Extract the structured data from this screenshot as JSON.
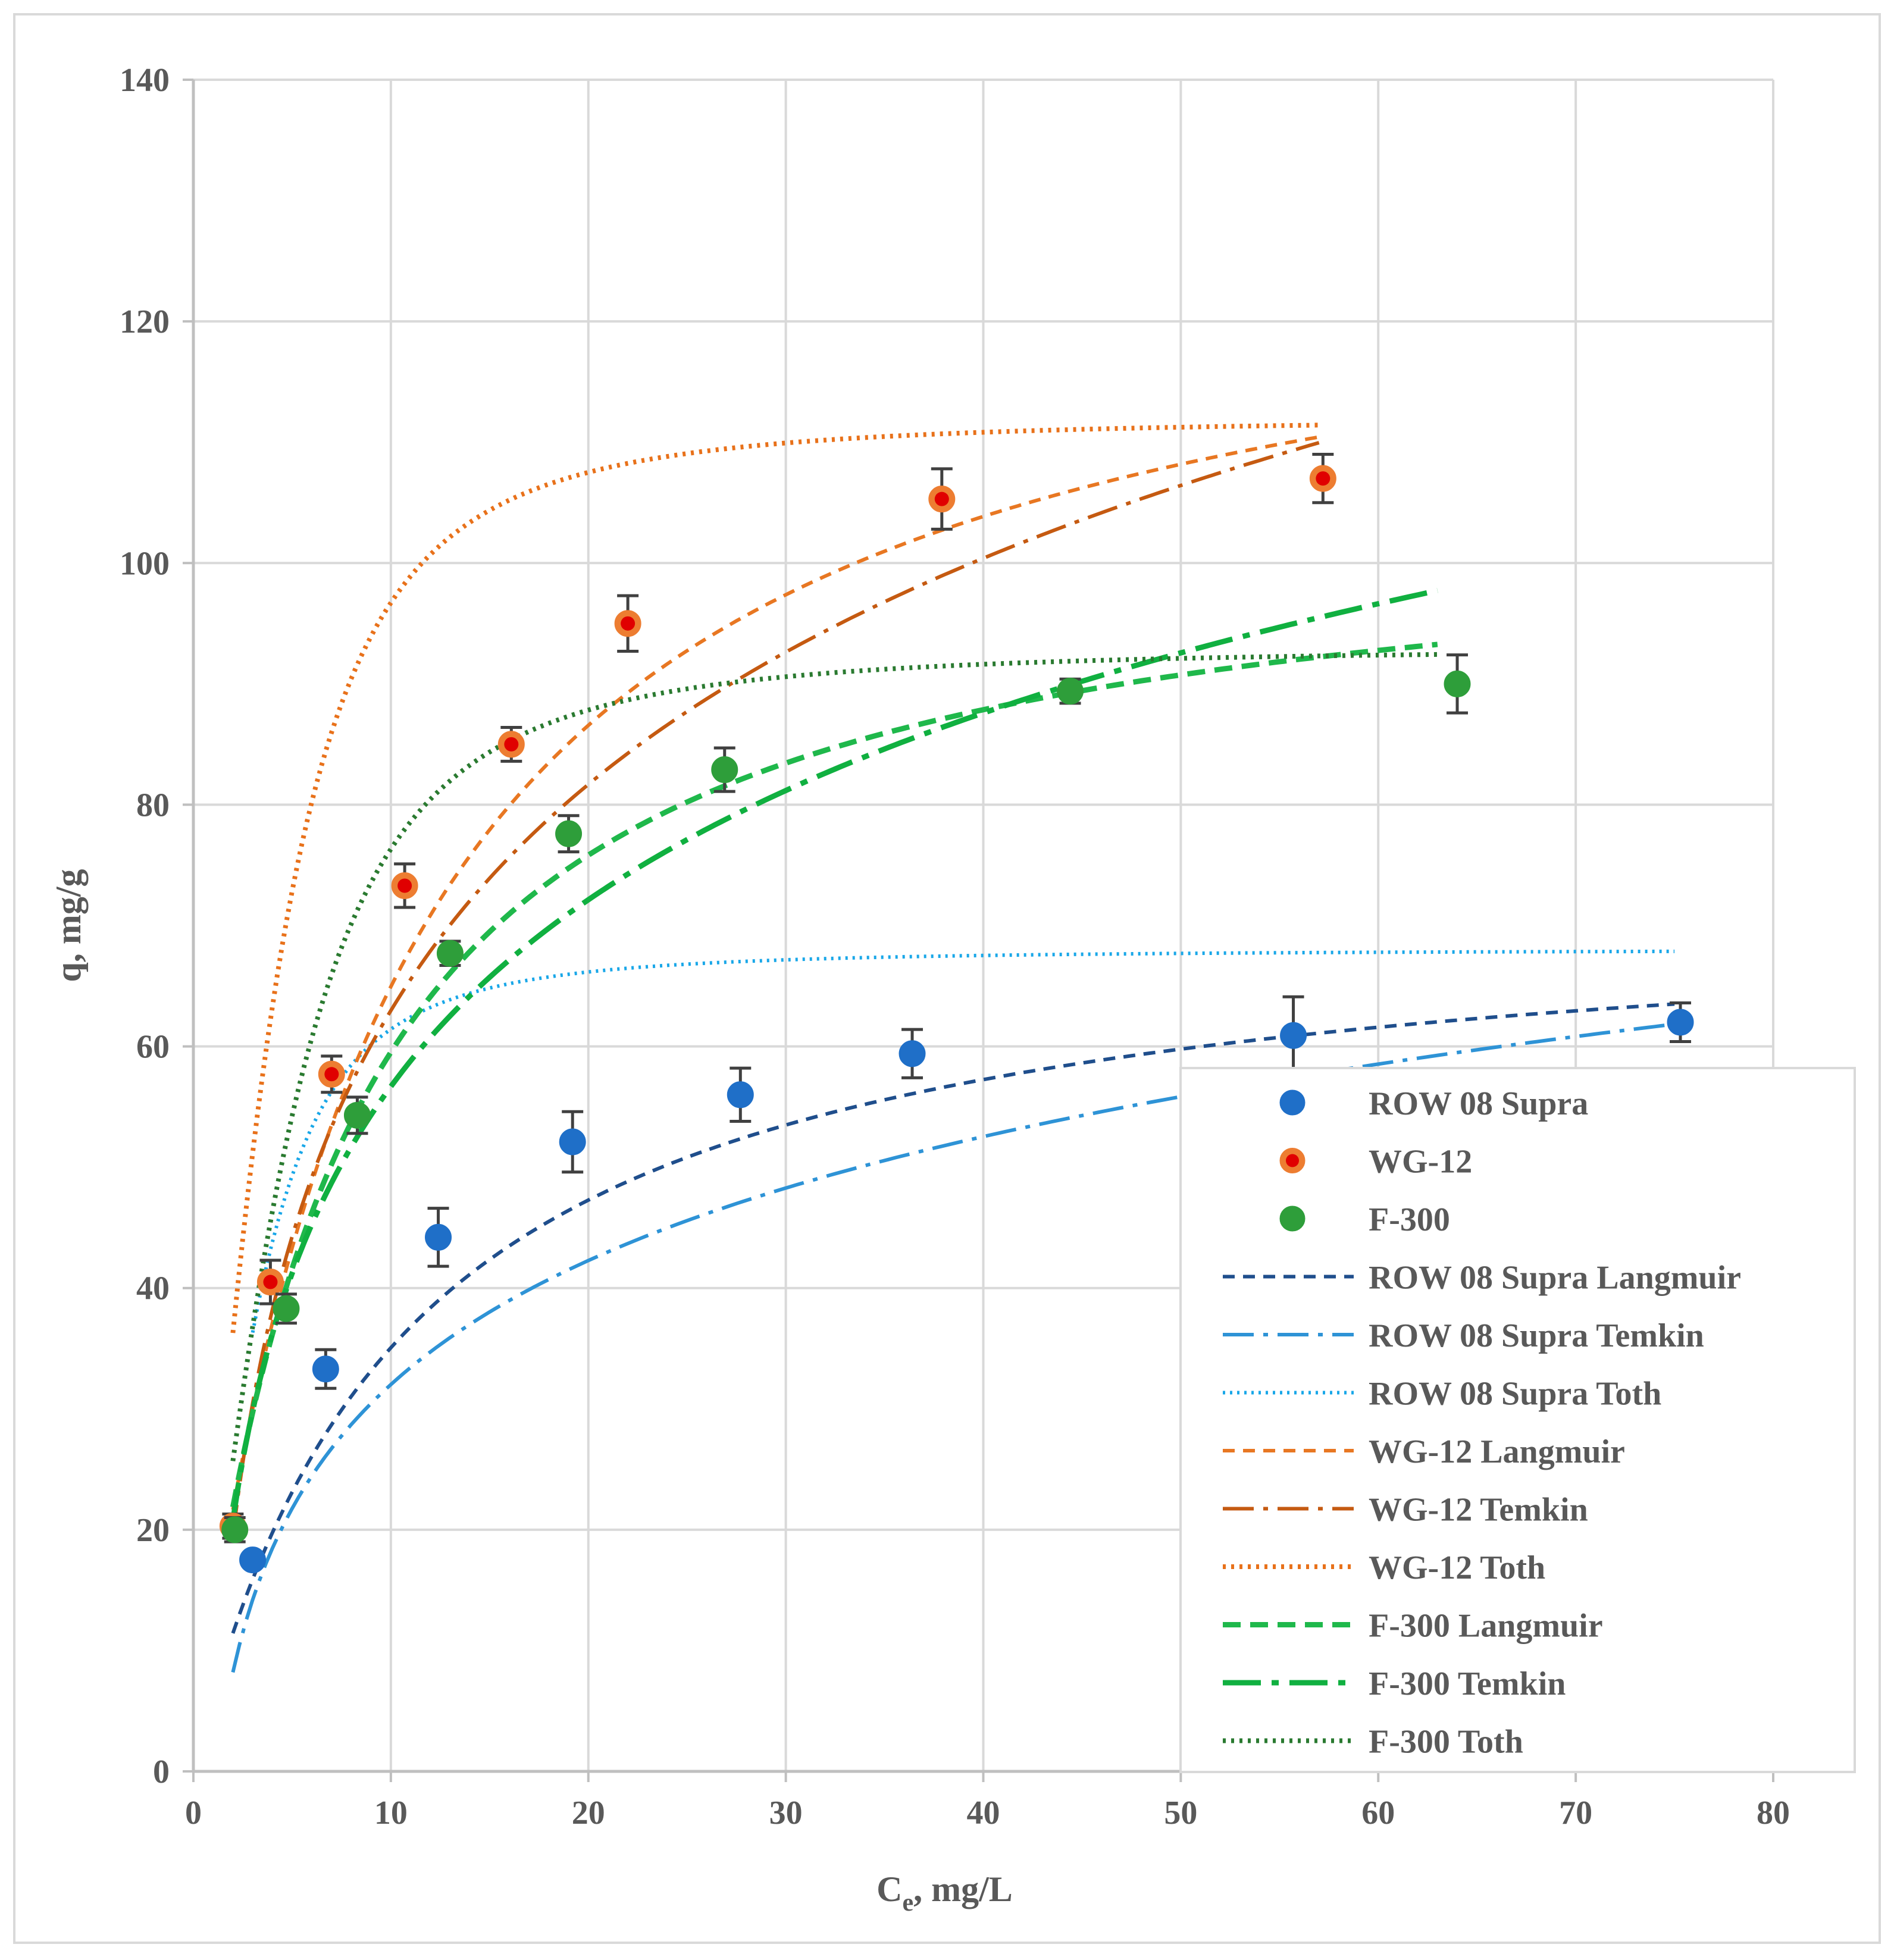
{
  "chart_data": {
    "type": "scatter",
    "title": "",
    "xlabel": {
      "main": "C",
      "sub": "e",
      "rest": ", mg/L"
    },
    "ylabel": "q, mg/g",
    "xlim": [
      0,
      80
    ],
    "ylim": [
      0,
      140
    ],
    "x_ticks": [
      0,
      10,
      20,
      30,
      40,
      50,
      60,
      70,
      80
    ],
    "y_ticks": [
      0,
      20,
      40,
      60,
      80,
      100,
      120,
      140
    ],
    "x_tick_labels": [
      "0",
      "10",
      "20",
      "30",
      "40",
      "50",
      "60",
      "70",
      "80"
    ],
    "y_tick_labels": [
      "0",
      "20",
      "40",
      "60",
      "80",
      "100",
      "120",
      "140"
    ],
    "grid": true,
    "legend_position": "bottom-right",
    "points": [
      {
        "name": "ROW 08 Supra",
        "color": "#1f6fc8",
        "edge": "#1f6fc8",
        "center": null,
        "x": [
          3.0,
          6.7,
          12.4,
          19.2,
          27.7,
          36.4,
          55.7,
          75.3
        ],
        "y": [
          17.5,
          33.3,
          44.2,
          52.1,
          56.0,
          59.4,
          60.9,
          62.0
        ],
        "err": [
          0.0,
          1.6,
          2.4,
          2.5,
          2.2,
          2.0,
          3.2,
          1.6
        ]
      },
      {
        "name": "WG-12",
        "color": "#ed7d31",
        "edge": "#ed7d31",
        "center": "#e00000",
        "x": [
          2.0,
          3.9,
          7.0,
          10.7,
          16.1,
          22.0,
          37.9,
          57.2
        ],
        "y": [
          20.3,
          40.5,
          57.7,
          73.3,
          85.0,
          95.0,
          105.3,
          107.0
        ],
        "err": [
          1.0,
          1.8,
          1.5,
          1.8,
          1.4,
          2.3,
          2.5,
          2.0
        ]
      },
      {
        "name": "F-300",
        "color": "#2e9e3a",
        "edge": "#2e9e3a",
        "center": null,
        "x": [
          2.1,
          4.7,
          8.3,
          13.0,
          19.0,
          26.9,
          44.4,
          64.0
        ],
        "y": [
          20.0,
          38.3,
          54.3,
          67.7,
          77.6,
          82.9,
          89.4,
          90.0
        ],
        "err": [
          1.0,
          1.2,
          1.5,
          1.0,
          1.5,
          1.8,
          1.0,
          2.4
        ]
      }
    ],
    "fits": [
      {
        "name": "ROW 08 Supra Langmuir",
        "color": "#1f4e8c",
        "dash": "20 14",
        "width": 6,
        "model": "langmuir",
        "params": {
          "qmax": 72.56,
          "K": 0.0935
        },
        "x_range": [
          2.0,
          75.0
        ]
      },
      {
        "name": "ROW 08 Supra Temkin",
        "color": "#2e93d6",
        "dash": "52 16 8 16",
        "width": 6,
        "model": "temkin",
        "params": {
          "B": 14.8,
          "A": 0.87
        },
        "x_range": [
          2.0,
          75.0
        ]
      },
      {
        "name": "ROW 08 Supra Toth",
        "color": "#19a7e8",
        "dash": "4 8",
        "width": 6,
        "model": "toth",
        "params": {
          "qmax": 68.0,
          "b": 4.75,
          "t": 2.0
        },
        "x_range": [
          3.0,
          75.0
        ]
      },
      {
        "name": "WG-12 Langmuir",
        "color": "#e87722",
        "dash": "20 14",
        "width": 6,
        "model": "langmuir",
        "params": {
          "qmax": 129.77,
          "K": 0.1002
        },
        "x_range": [
          2.0,
          57.0
        ]
      },
      {
        "name": "WG-12 Temkin",
        "color": "#c55a11",
        "dash": "52 16 8 16",
        "width": 6,
        "model": "temkin",
        "params": {
          "B": 27.0,
          "A": 1.03
        },
        "x_range": [
          2.0,
          57.0
        ]
      },
      {
        "name": "WG-12 Toth",
        "color": "#e8711a",
        "dash": "5 9",
        "width": 8,
        "model": "toth",
        "params": {
          "qmax": 112.0,
          "b": 5.84,
          "t": 2.0
        },
        "x_range": [
          2.0,
          57.0
        ]
      },
      {
        "name": "F-300 Langmuir",
        "color": "#1fb84b",
        "dash": "30 16",
        "width": 9,
        "model": "langmuir",
        "params": {
          "qmax": 104.44,
          "K": 0.1325
        },
        "x_range": [
          2.0,
          63.0
        ]
      },
      {
        "name": "F-300 Temkin",
        "color": "#10b040",
        "dash": "64 18 12 18",
        "width": 9,
        "model": "temkin",
        "params": {
          "B": 22.3,
          "A": 1.27
        },
        "x_range": [
          2.0,
          63.0
        ]
      },
      {
        "name": "F-300 Toth",
        "color": "#2a7a30",
        "dash": "5 9",
        "width": 8,
        "model": "toth",
        "params": {
          "qmax": 93.0,
          "b": 6.96,
          "t": 2.0
        },
        "x_range": [
          2.0,
          63.0
        ]
      }
    ]
  }
}
